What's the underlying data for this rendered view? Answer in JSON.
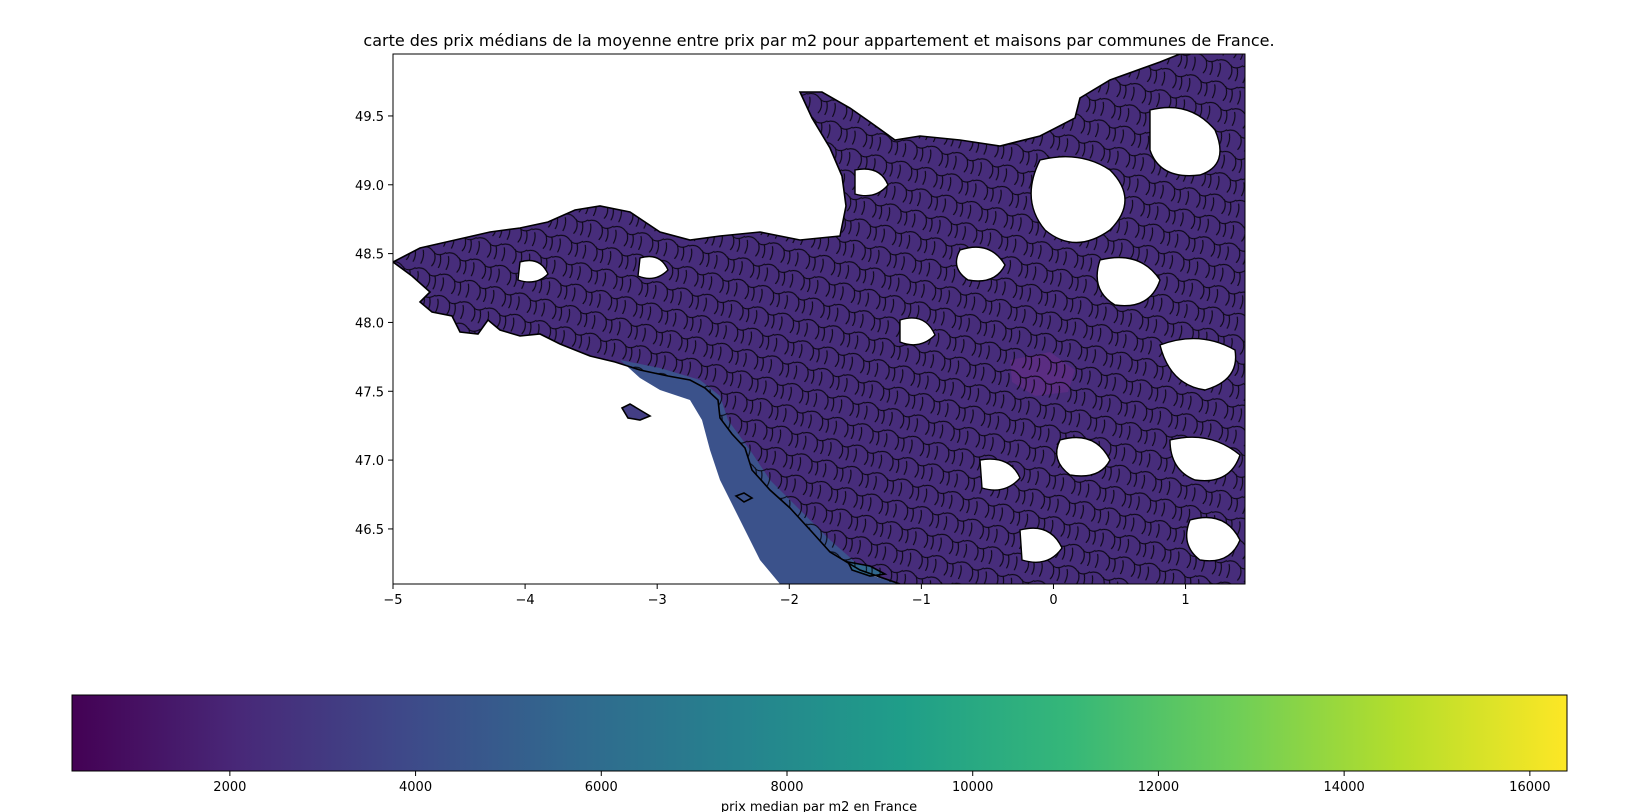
{
  "chart_data": {
    "type": "choropleth-map",
    "title": "carte des prix médians de la moyenne entre prix par m2 pour appartement et maisons par communes de France.",
    "region_shown": "western France (Bretagne, Normandie, Pays de la Loire, Centre)",
    "x_axis": {
      "label": "",
      "range": [
        -5.0,
        1.45
      ],
      "ticks": [
        -5,
        -4,
        -3,
        -2,
        -1,
        0,
        1
      ],
      "tick_labels": [
        "−5",
        "−4",
        "−3",
        "−2",
        "−1",
        "0",
        "1"
      ]
    },
    "y_axis": {
      "label": "",
      "range": [
        46.1,
        49.95
      ],
      "ticks": [
        46.5,
        47.0,
        47.5,
        48.0,
        48.5,
        49.0,
        49.5
      ],
      "tick_labels": [
        "46.5",
        "47.0",
        "47.5",
        "48.0",
        "48.5",
        "49.0",
        "49.5"
      ]
    },
    "colorbar": {
      "label": "prix median par m2 en France",
      "colormap": "viridis",
      "range": [
        300,
        16400
      ],
      "ticks": [
        2000,
        4000,
        6000,
        8000,
        10000,
        12000,
        14000,
        16000
      ],
      "tick_labels": [
        "2000",
        "4000",
        "6000",
        "8000",
        "10000",
        "12000",
        "14000",
        "16000"
      ],
      "stops": [
        "#440154",
        "#482878",
        "#3e4989",
        "#31688e",
        "#26828e",
        "#1f9e89",
        "#35b779",
        "#6ece58",
        "#b5de2b",
        "#fde725"
      ]
    },
    "observed_value_range": [
      1200,
      5000
    ],
    "edge_color": "#000000",
    "missing_color": "#ffffff"
  }
}
